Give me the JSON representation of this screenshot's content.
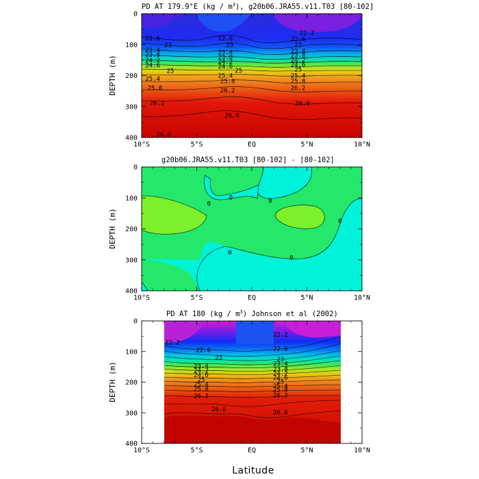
{
  "figure": {
    "xlabel": "Latitude",
    "x_ticks": [
      "10°S",
      "5°S",
      "EQ",
      "5°N",
      "10°N"
    ],
    "y_ticks": [
      "0",
      "100",
      "200",
      "300",
      "400"
    ]
  },
  "chart_data": [
    {
      "type": "heatmap",
      "title_main": "PD AT 179.9°E (kg / m",
      "title_sup": "3",
      "title_rest": "), g20b06.JRA55.v11.T03 [80-102]",
      "ylabel": "DEPTH (m)",
      "xlim": [
        -10,
        10
      ],
      "ylim": [
        400,
        0
      ],
      "contour_labels": [
        {
          "text": "22.6",
          "lat": -9.0,
          "depth": 80
        },
        {
          "text": "23",
          "lat": -7.6,
          "depth": 100
        },
        {
          "text": "23.4",
          "lat": -9.0,
          "depth": 117
        },
        {
          "text": "23.8",
          "lat": -9.0,
          "depth": 133
        },
        {
          "text": "24.2",
          "lat": -9.0,
          "depth": 150
        },
        {
          "text": "24.6",
          "lat": -9.0,
          "depth": 167
        },
        {
          "text": "25",
          "lat": -7.4,
          "depth": 185
        },
        {
          "text": "25.4",
          "lat": -9.0,
          "depth": 210
        },
        {
          "text": "25.8",
          "lat": -8.8,
          "depth": 240
        },
        {
          "text": "26.2",
          "lat": -8.6,
          "depth": 288
        },
        {
          "text": "26.6",
          "lat": -8.0,
          "depth": 390
        },
        {
          "text": "22.6",
          "lat": -2.4,
          "depth": 80
        },
        {
          "text": "23",
          "lat": -2.0,
          "depth": 100
        },
        {
          "text": "23.4",
          "lat": -2.4,
          "depth": 125
        },
        {
          "text": "23.8",
          "lat": -2.4,
          "depth": 140
        },
        {
          "text": "24.2",
          "lat": -2.4,
          "depth": 155
        },
        {
          "text": "24.6",
          "lat": -2.4,
          "depth": 170
        },
        {
          "text": "25",
          "lat": -1.2,
          "depth": 183
        },
        {
          "text": "25.4",
          "lat": -2.4,
          "depth": 200
        },
        {
          "text": "25.8",
          "lat": -2.2,
          "depth": 218
        },
        {
          "text": "26.2",
          "lat": -2.2,
          "depth": 248
        },
        {
          "text": "26.6",
          "lat": -1.8,
          "depth": 328
        },
        {
          "text": "22.2",
          "lat": 5.0,
          "depth": 62
        },
        {
          "text": "22.6",
          "lat": 4.2,
          "depth": 82
        },
        {
          "text": "23",
          "lat": 4.2,
          "depth": 100
        },
        {
          "text": "23.4",
          "lat": 4.2,
          "depth": 120
        },
        {
          "text": "23.8",
          "lat": 4.2,
          "depth": 135
        },
        {
          "text": "24.2",
          "lat": 4.2,
          "depth": 150
        },
        {
          "text": "24.6",
          "lat": 4.2,
          "depth": 165
        },
        {
          "text": "25",
          "lat": 4.2,
          "depth": 180
        },
        {
          "text": "25.4",
          "lat": 4.2,
          "depth": 200
        },
        {
          "text": "25.8",
          "lat": 4.2,
          "depth": 218
        },
        {
          "text": "26.2",
          "lat": 4.2,
          "depth": 240
        },
        {
          "text": "26.6",
          "lat": 4.6,
          "depth": 290
        }
      ]
    },
    {
      "type": "heatmap",
      "title_main": "g20b06.JRA55.v11.T03 [80-102] -  [80-102]",
      "ylabel": "DEPTH (m)",
      "xlim": [
        -10,
        10
      ],
      "ylim": [
        400,
        0
      ],
      "contour_labels": [
        {
          "text": "0",
          "lat": -3.9,
          "depth": 118
        },
        {
          "text": "0",
          "lat": -1.9,
          "depth": 98
        },
        {
          "text": "0",
          "lat": 1.7,
          "depth": 108
        },
        {
          "text": "0",
          "lat": 8.0,
          "depth": 175
        },
        {
          "text": "0",
          "lat": -2.0,
          "depth": 276
        },
        {
          "text": "0",
          "lat": 3.6,
          "depth": 293
        }
      ]
    },
    {
      "type": "heatmap",
      "title_main": "PD AT 180 (kg / m",
      "title_sup": "3",
      "title_rest": ") Johnson et al (2002)",
      "ylabel": "DEPTH (m)",
      "xlim": [
        -10,
        10
      ],
      "ylim": [
        400,
        0
      ],
      "data_lat_range": [
        -8,
        8
      ],
      "contour_labels": [
        {
          "text": "22.2",
          "lat": -7.2,
          "depth": 70
        },
        {
          "text": "22.6",
          "lat": -4.4,
          "depth": 95
        },
        {
          "text": "23",
          "lat": -3.0,
          "depth": 120
        },
        {
          "text": "23.4",
          "lat": -4.6,
          "depth": 147
        },
        {
          "text": "24.2",
          "lat": -4.6,
          "depth": 162
        },
        {
          "text": "24.6",
          "lat": -4.6,
          "depth": 177
        },
        {
          "text": "25",
          "lat": -4.6,
          "depth": 192
        },
        {
          "text": "25.4",
          "lat": -4.6,
          "depth": 207
        },
        {
          "text": "25.8",
          "lat": -4.6,
          "depth": 222
        },
        {
          "text": "26.2",
          "lat": -4.6,
          "depth": 245
        },
        {
          "text": "26.6",
          "lat": -3.0,
          "depth": 288
        },
        {
          "text": "22.2",
          "lat": 2.6,
          "depth": 45
        },
        {
          "text": "22.6",
          "lat": 2.6,
          "depth": 90
        },
        {
          "text": "23",
          "lat": 2.6,
          "depth": 125
        },
        {
          "text": "23.4",
          "lat": 2.6,
          "depth": 140
        },
        {
          "text": "23.8",
          "lat": 2.6,
          "depth": 158
        },
        {
          "text": "24.2",
          "lat": 2.6,
          "depth": 172
        },
        {
          "text": "24.6",
          "lat": 2.6,
          "depth": 185
        },
        {
          "text": "25",
          "lat": 2.6,
          "depth": 198
        },
        {
          "text": "25.4",
          "lat": 2.6,
          "depth": 212
        },
        {
          "text": "25.8",
          "lat": 2.6,
          "depth": 225
        },
        {
          "text": "26.2",
          "lat": 2.6,
          "depth": 243
        },
        {
          "text": "26.6",
          "lat": 2.6,
          "depth": 298
        }
      ]
    }
  ]
}
